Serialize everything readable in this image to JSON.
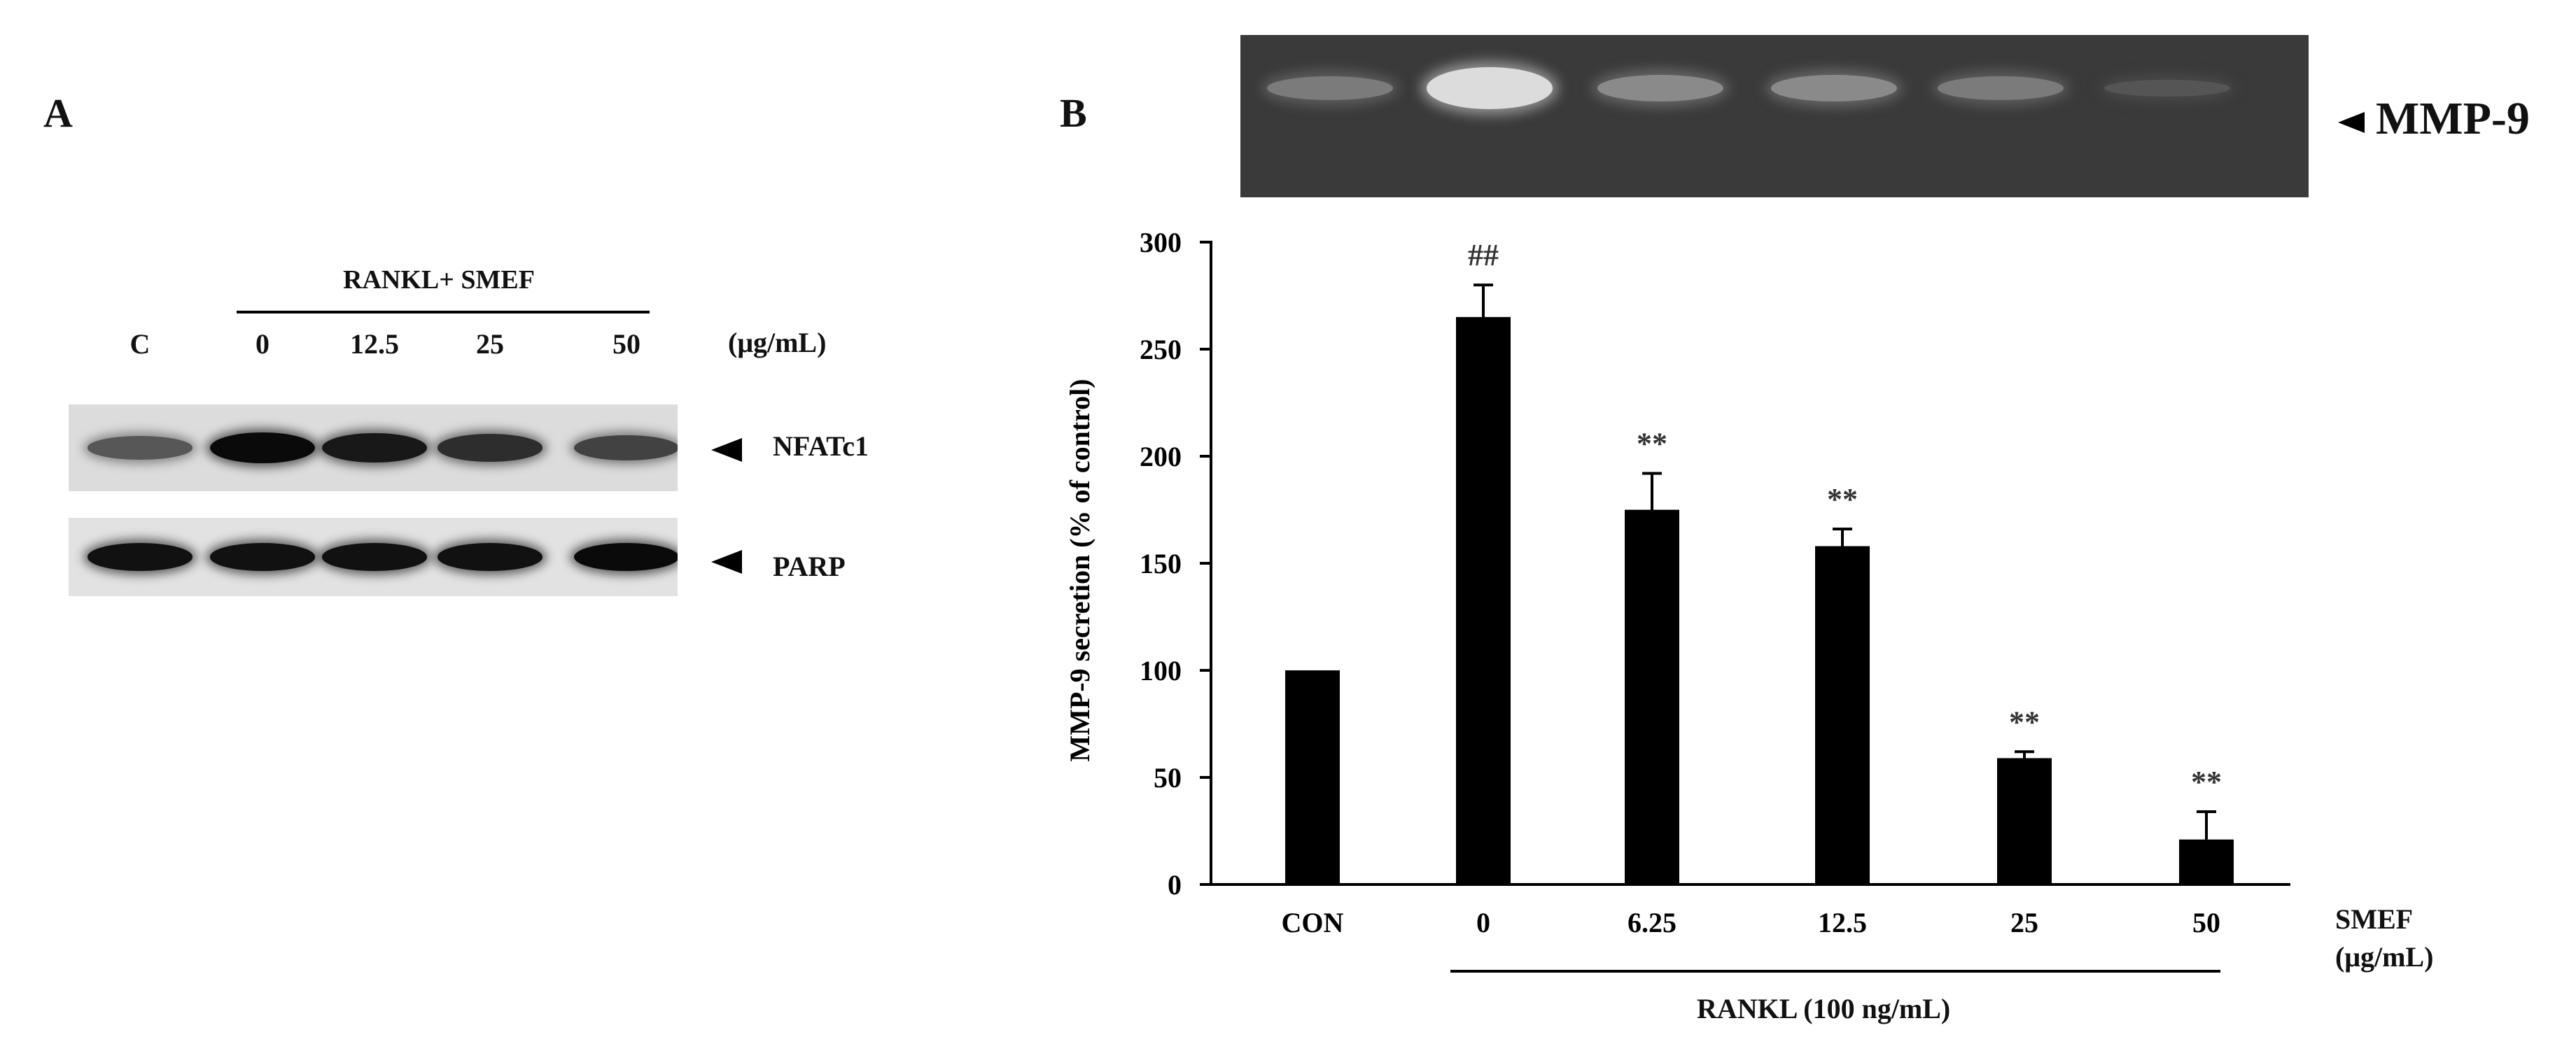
{
  "panel_a": {
    "letter": "A",
    "treatment_label": "RANKL+ SMEF",
    "unit_label": "(μg/mL)",
    "lanes": [
      "C",
      "0",
      "12.5",
      "25",
      "50"
    ],
    "blots": [
      {
        "label": "NFATc1",
        "band_intensity": [
          0.45,
          1.0,
          0.9,
          0.75,
          0.6
        ]
      },
      {
        "label": "PARP",
        "band_intensity": [
          0.95,
          0.95,
          0.95,
          0.95,
          1.0
        ]
      }
    ]
  },
  "panel_b": {
    "letter": "B",
    "gel_label": "MMP-9",
    "gel_band_intensity": [
      0.35,
      1.0,
      0.45,
      0.45,
      0.35,
      0.1
    ],
    "rankl_label": "RANKL (100 ng/mL)",
    "smef_label": "SMEF",
    "smef_unit": "(μg/mL)"
  },
  "chart_data": {
    "type": "bar",
    "categories": [
      "CON",
      "0",
      "6.25",
      "12.5",
      "25",
      "50"
    ],
    "values": [
      100,
      265,
      175,
      158,
      59,
      21
    ],
    "errors": [
      0,
      15,
      17,
      8,
      3,
      13
    ],
    "annotations": [
      "",
      "##",
      "**",
      "**",
      "**",
      "**"
    ],
    "ylabel": "MMP-9 secretion (% of control)",
    "xlabel": "",
    "yticks": [
      0,
      50,
      100,
      150,
      200,
      250,
      300
    ],
    "ylim": [
      0,
      300
    ],
    "grid": false,
    "bar_color": "#000000"
  }
}
